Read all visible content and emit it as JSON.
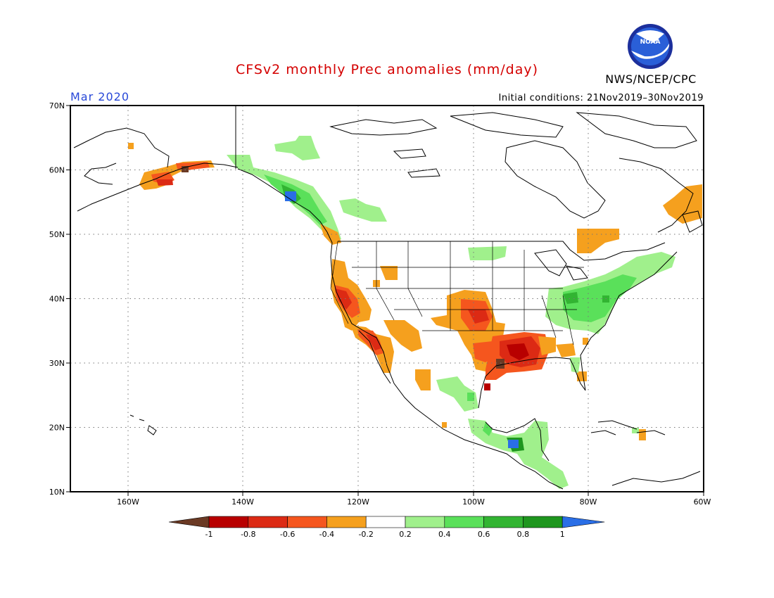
{
  "title": "CFSv2 monthly Prec anomalies (mm/day)",
  "month": "Mar 2020",
  "initial_conditions": "Initial conditions: 21Nov2019–30Nov2019",
  "agency": "NWS/NCEP/CPC",
  "logo_text": "NOAA",
  "lat_labels": [
    "70N",
    "60N",
    "50N",
    "40N",
    "30N",
    "20N",
    "10N"
  ],
  "lon_labels": [
    "160W",
    "140W",
    "120W",
    "100W",
    "80W",
    "60W"
  ],
  "colorbar": {
    "ticks": [
      "-1",
      "-0.8",
      "-0.6",
      "-0.4",
      "-0.2",
      "0.2",
      "0.4",
      "0.6",
      "0.8",
      "1"
    ],
    "colors": [
      "#6b3a24",
      "#b80000",
      "#dc2a14",
      "#f5561e",
      "#f5a01e",
      "#ffffff",
      "#a0f08c",
      "#5ae05a",
      "#32b432",
      "#1e961e",
      "#2a6ee6"
    ]
  }
}
